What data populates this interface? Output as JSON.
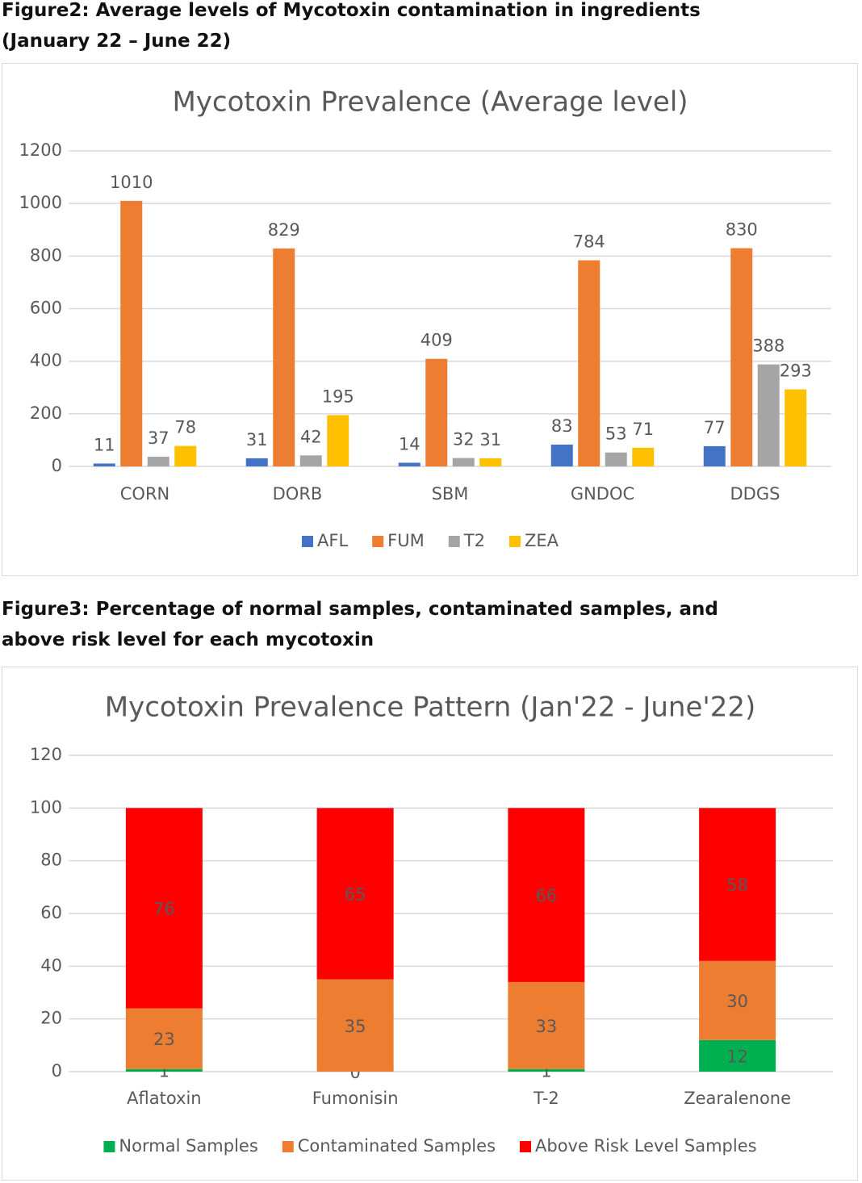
{
  "captions": [
    "Figure2: Average levels of Mycotoxin contamination in ingredients (January 22 – June 22)",
    "Figure3: Percentage of normal samples, contaminated samples, and above risk level for each mycotoxin"
  ],
  "chart_data": [
    {
      "type": "bar",
      "title": "Mycotoxin Prevalence (Average level)",
      "categories": [
        "CORN",
        "DORB",
        "SBM",
        "GNDOC",
        "DDGS"
      ],
      "series": [
        {
          "name": "AFL",
          "color": "#4472c4",
          "values": [
            11,
            31,
            14,
            83,
            77
          ]
        },
        {
          "name": "FUM",
          "color": "#ed7d31",
          "values": [
            1010,
            829,
            409,
            784,
            830
          ]
        },
        {
          "name": "T2",
          "color": "#a5a5a5",
          "values": [
            37,
            42,
            32,
            53,
            388
          ]
        },
        {
          "name": "ZEA",
          "color": "#ffc000",
          "values": [
            78,
            195,
            31,
            71,
            293
          ]
        }
      ],
      "ylim": [
        0,
        1200
      ],
      "yticks": [
        0,
        200,
        400,
        600,
        800,
        1000,
        1200
      ],
      "grid": true,
      "data_labels": true,
      "legend": "bottom"
    },
    {
      "type": "stacked-bar",
      "title": "Mycotoxin Prevalence Pattern (Jan'22 - June'22)",
      "categories": [
        "Aflatoxin",
        "Fumonisin",
        "T-2",
        "Zearalenone"
      ],
      "series": [
        {
          "name": "Normal Samples",
          "color": "#00b050",
          "values": [
            1,
            0,
            1,
            12
          ]
        },
        {
          "name": "Contaminated Samples",
          "color": "#ed7d31",
          "values": [
            23,
            35,
            33,
            30
          ]
        },
        {
          "name": "Above Risk Level Samples",
          "color": "#ff0000",
          "values": [
            76,
            65,
            66,
            58
          ]
        }
      ],
      "ylim": [
        0,
        120
      ],
      "yticks": [
        0,
        20,
        40,
        60,
        80,
        100,
        120
      ],
      "grid": true,
      "data_labels": true,
      "legend": "bottom"
    }
  ]
}
